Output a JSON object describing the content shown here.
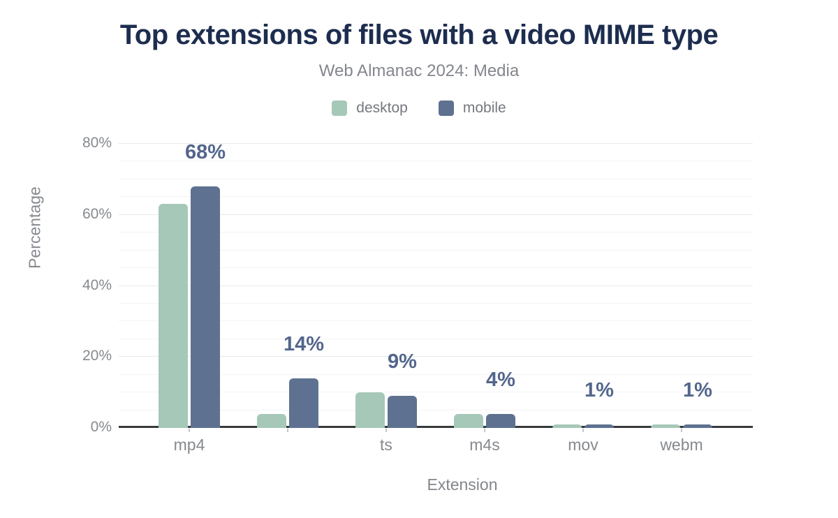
{
  "chart_data": {
    "type": "bar",
    "title": "Top extensions of files with a video MIME type",
    "subtitle": "Web Almanac 2024: Media",
    "xlabel": "Extension",
    "ylabel": "Percentage",
    "ylim": [
      0,
      80
    ],
    "y_tick_labels": [
      "0%",
      "20%",
      "40%",
      "60%",
      "80%"
    ],
    "y_tick_values": [
      0,
      20,
      40,
      60,
      80
    ],
    "grid_step_pct": 5,
    "grid": "on",
    "legend_position": "top",
    "categories": [
      "mp4",
      "",
      "ts",
      "m4s",
      "mov",
      "webm"
    ],
    "series": [
      {
        "name": "desktop",
        "color": "#a6c8b8",
        "values": [
          63,
          4,
          10,
          4,
          1,
          1
        ]
      },
      {
        "name": "mobile",
        "color": "#5e7190",
        "values": [
          68,
          14,
          9,
          4,
          1,
          1
        ]
      }
    ],
    "bar_value_labels": {
      "labeled_series": "mobile",
      "labels": [
        "68%",
        "14%",
        "9%",
        "4%",
        "1%",
        "1%"
      ]
    },
    "colors": {
      "title": "#1d2d4f",
      "subtitle": "#83868c",
      "tick_text": "#86898e",
      "value_label": "#53668c",
      "axis_line": "#37393b",
      "grid_minor": "#f3f4f6",
      "grid_major": "#e8e9ed",
      "background": "#ffffff"
    }
  }
}
